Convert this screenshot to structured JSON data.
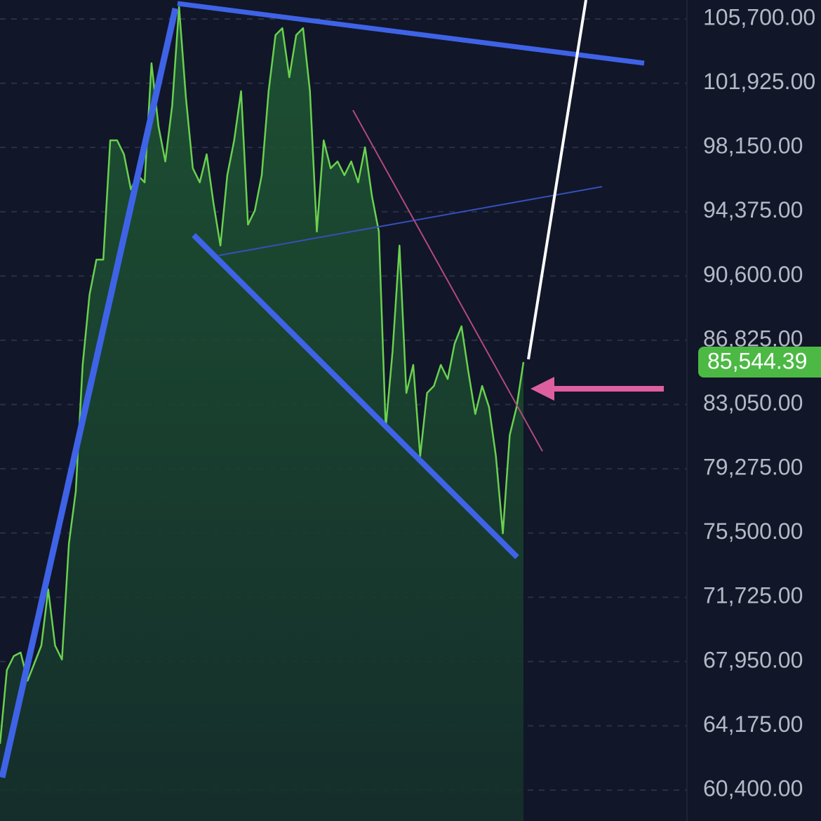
{
  "chart_data": {
    "type": "area",
    "color": "#6ad14f",
    "values": [
      63120,
      67450,
      68270,
      68480,
      66830,
      67860,
      68890,
      72190,
      68890,
      68070,
      74880,
      77960,
      85380,
      89500,
      91560,
      91560,
      98570,
      98570,
      97740,
      95690,
      96520,
      96100,
      103100,
      99400,
      97330,
      100630,
      106400,
      101050,
      96930,
      96100,
      97750,
      94860,
      92390,
      96520,
      98570,
      101460,
      93620,
      94450,
      96520,
      101460,
      104750,
      105160,
      102280,
      104750,
      105160,
      101460,
      93210,
      98570,
      96930,
      97330,
      96520,
      97330,
      96100,
      98160,
      95280,
      93210,
      81670,
      86200,
      92390,
      83730,
      85380,
      80020,
      83730,
      84140,
      85380,
      84550,
      86620,
      87650,
      84960,
      82490,
      84140,
      82900,
      80020,
      75480,
      81250,
      82900,
      85544.39
    ],
    "ylim": [
      58585,
      106813
    ],
    "yticks": [
      {
        "value": 105700,
        "label": "105,700.00"
      },
      {
        "value": 101925,
        "label": "101,925.00"
      },
      {
        "value": 98150,
        "label": "98,150.00"
      },
      {
        "value": 94375,
        "label": "94,375.00"
      },
      {
        "value": 90600,
        "label": "90,600.00"
      },
      {
        "value": 86825,
        "label": "86,825.00"
      },
      {
        "value": 83050,
        "label": "83,050.00"
      },
      {
        "value": 79275,
        "label": "79,275.00"
      },
      {
        "value": 75500,
        "label": "75,500.00"
      },
      {
        "value": 71725,
        "label": "71,725.00"
      },
      {
        "value": 67950,
        "label": "67,950.00"
      },
      {
        "value": 64175,
        "label": "64,175.00"
      },
      {
        "value": 60400,
        "label": "60,400.00"
      }
    ],
    "current_price": {
      "value": 85544.39,
      "label": "85,544.39"
    },
    "grid": true
  }
}
